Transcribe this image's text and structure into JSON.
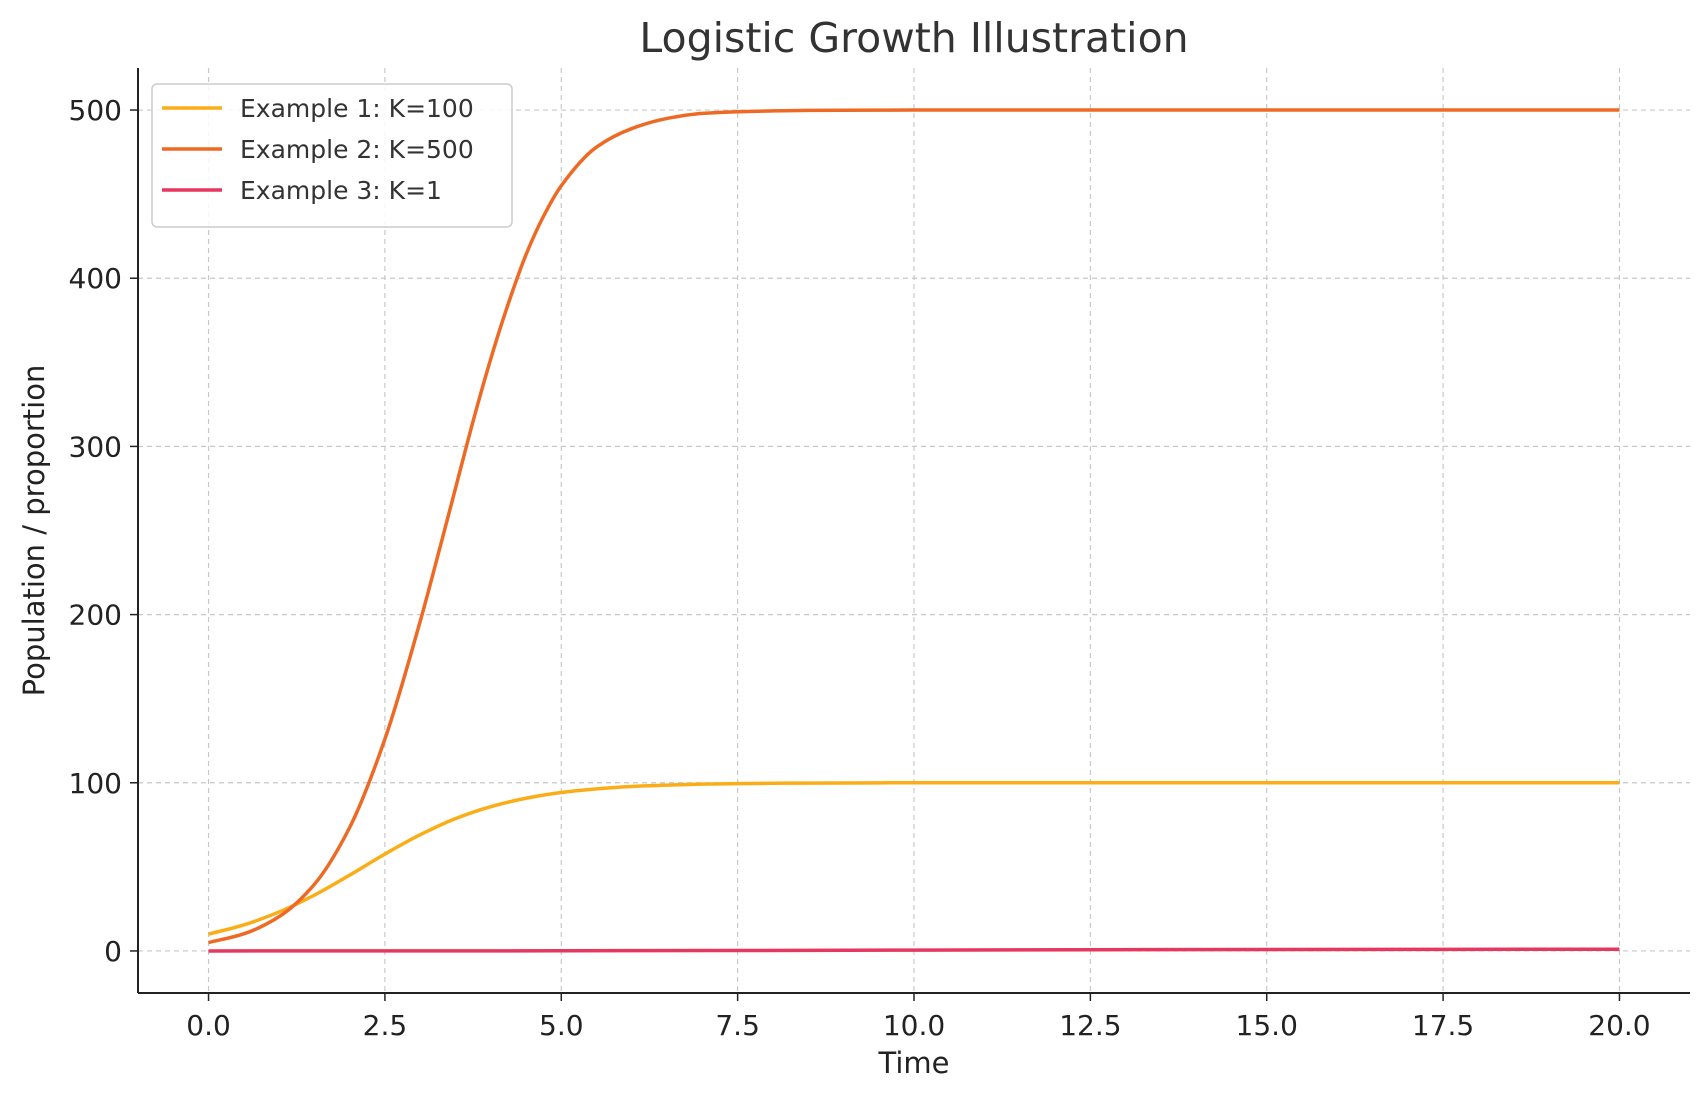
{
  "chart_data": {
    "type": "line",
    "title": "Logistic Growth Illustration",
    "xlabel": "Time",
    "ylabel": "Population / proportion",
    "xlim": [
      -1,
      21
    ],
    "ylim": [
      -25,
      525
    ],
    "xticks": [
      0,
      2.5,
      5,
      7.5,
      10,
      12.5,
      15,
      17.5,
      20
    ],
    "xtick_labels": [
      "0.0",
      "2.5",
      "5.0",
      "7.5",
      "10.0",
      "12.5",
      "15.0",
      "17.5",
      "20.0"
    ],
    "yticks": [
      0,
      100,
      200,
      300,
      400,
      500
    ],
    "ytick_labels": [
      "0",
      "100",
      "200",
      "300",
      "400",
      "500"
    ],
    "grid": true,
    "legend_position": "top-left",
    "series": [
      {
        "name": "Example 1: K=100",
        "color": "#FBAD18",
        "x": [
          0,
          0.5,
          1,
          1.5,
          2,
          2.5,
          3,
          3.5,
          4,
          4.5,
          5,
          5.5,
          6,
          6.5,
          7,
          7.5,
          8,
          8.5,
          9,
          10,
          11,
          12,
          13,
          14,
          15,
          16,
          17,
          18,
          19,
          20
        ],
        "y": [
          10,
          15.5,
          23.2,
          33.2,
          45.1,
          57.6,
          69.1,
          78.7,
          85.8,
          90.8,
          94.2,
          96.4,
          97.8,
          98.6,
          99.2,
          99.5,
          99.7,
          99.8,
          99.9,
          100,
          100,
          100,
          100,
          100,
          100,
          100,
          100,
          100,
          100,
          100
        ]
      },
      {
        "name": "Example 2: K=500",
        "color": "#EE6A24",
        "x": [
          0,
          0.5,
          1,
          1.5,
          2,
          2.5,
          3,
          3.25,
          3.5,
          3.75,
          4,
          4.25,
          4.5,
          4.75,
          5,
          5.5,
          6,
          6.5,
          7,
          7.5,
          8,
          8.5,
          9,
          10,
          11,
          12,
          14,
          16,
          18,
          20
        ],
        "y": [
          5,
          10.2,
          20.4,
          39.6,
          73.4,
          126,
          196,
          235,
          275,
          315,
          352,
          385,
          414,
          437,
          455,
          478,
          489,
          495,
          498,
          499,
          499.5,
          499.8,
          499.9,
          500,
          500,
          500,
          500,
          500,
          500,
          500
        ]
      },
      {
        "name": "Example 3: K=1",
        "color": "#E6375F",
        "x": [
          0,
          5,
          10,
          15,
          20
        ],
        "y": [
          0.01,
          0.1,
          0.5,
          0.9,
          1.0
        ]
      }
    ]
  }
}
